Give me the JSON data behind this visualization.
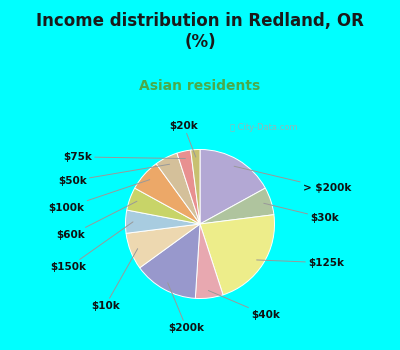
{
  "title": "Income distribution in Redland, OR\n(%)",
  "subtitle": "Asian residents",
  "background_color": "#00FFFF",
  "chart_bg_color_top": "#c8e8e8",
  "chart_bg_color_bottom": "#d4ecd4",
  "title_color": "#1a1a1a",
  "subtitle_color": "#4aaa4a",
  "labels": [
    "> $200k",
    "$30k",
    "$125k",
    "$40k",
    "$200k",
    "$10k",
    "$150k",
    "$60k",
    "$100k",
    "$50k",
    "$75k",
    "$20k"
  ],
  "values": [
    17,
    6,
    22,
    6,
    14,
    8,
    5,
    5,
    7,
    5,
    3,
    2
  ],
  "colors": [
    "#b3a8d4",
    "#afc49e",
    "#eded8a",
    "#e8a8b0",
    "#9898cc",
    "#edd8b0",
    "#a8cce0",
    "#c8d468",
    "#eca868",
    "#d4c09a",
    "#e89090",
    "#c8c070"
  ],
  "label_fontsize": 7.5,
  "title_fontsize": 12,
  "subtitle_fontsize": 10,
  "watermark": "City-Data.com",
  "label_positions": {
    "> $200k": [
      1.38,
      0.48,
      "left"
    ],
    "$30k": [
      1.48,
      0.08,
      "left"
    ],
    "$125k": [
      1.45,
      -0.52,
      "left"
    ],
    "$40k": [
      0.88,
      -1.22,
      "center"
    ],
    "$200k": [
      -0.18,
      -1.4,
      "center"
    ],
    "$10k": [
      -1.08,
      -1.1,
      "right"
    ],
    "$150k": [
      -1.52,
      -0.58,
      "right"
    ],
    "$60k": [
      -1.55,
      -0.15,
      "right"
    ],
    "$100k": [
      -1.55,
      0.22,
      "right"
    ],
    "$50k": [
      -1.52,
      0.58,
      "right"
    ],
    "$75k": [
      -1.45,
      0.9,
      "right"
    ],
    "$20k": [
      -0.22,
      1.32,
      "center"
    ]
  }
}
